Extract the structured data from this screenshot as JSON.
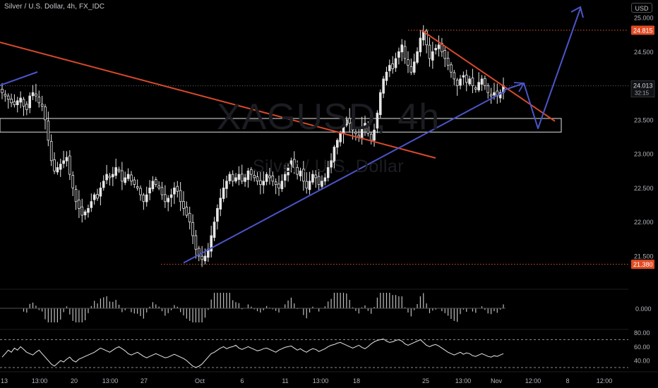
{
  "header": {
    "title": "Silver / U.S. Dollar, 4h, FX_IDC",
    "currency": "USD"
  },
  "watermark": {
    "symbol": "XAGUSD, 4h",
    "description": "Silver / U.S. Dollar"
  },
  "colors": {
    "background": "#000000",
    "candle": "#e6e6e6",
    "red_line": "#d84a2c",
    "blue_line": "#4b55c9",
    "price_badge_bg": "#e04b24",
    "axis_text": "#b2b5be",
    "box_border": "#cfcfcf",
    "dotted_level": "#e55a2a"
  },
  "chart_data": [
    {
      "type": "candlestick",
      "title": "",
      "symbol": "XAGUSD",
      "interval": "4h",
      "x_tick_labels": [
        "13",
        "13:00",
        "20",
        "13:00",
        "27",
        "Oct",
        "6",
        "11",
        "13:00",
        "18",
        "25",
        "13:00",
        "Nov",
        "12:00",
        "8",
        "12:00"
      ],
      "y_tick_labels": [
        "25.000",
        "24.500",
        "24.000",
        "23.500",
        "23.000",
        "22.500",
        "22.000",
        "21.500"
      ],
      "ylim": [
        21.3,
        25.2
      ],
      "current_price": "24.013",
      "countdown": "32:15",
      "price_levels": [
        {
          "value": 24.815,
          "label": "24.815",
          "style": "dotted"
        },
        {
          "value": 21.38,
          "label": "21.380",
          "style": "dotted"
        }
      ],
      "support_zone": [
        23.32,
        23.52
      ],
      "trendlines": [
        {
          "color": "red",
          "from": [
            "13",
            24.68
          ],
          "to": [
            "25",
            22.98
          ],
          "note": ""
        },
        {
          "color": "red",
          "from": [
            "25",
            24.81
          ],
          "to": [
            "Nov",
            23.48
          ]
        },
        {
          "color": "blue",
          "from": [
            "27",
            21.4
          ],
          "to": [
            "Nov",
            24.0
          ]
        },
        {
          "color": "blue",
          "from": [
            "13",
            24.0
          ],
          "to": [
            "13",
            24.2
          ]
        }
      ],
      "projection": {
        "color": "blue",
        "path_values": [
          23.85,
          24.03,
          23.37,
          25.12
        ]
      },
      "closes": [
        23.9,
        23.85,
        23.8,
        23.75,
        23.72,
        23.78,
        23.82,
        23.7,
        23.65,
        23.85,
        23.9,
        23.85,
        23.75,
        23.7,
        23.5,
        23.2,
        22.9,
        22.75,
        22.8,
        22.85,
        22.9,
        22.95,
        22.7,
        22.5,
        22.3,
        22.2,
        22.1,
        22.15,
        22.2,
        22.3,
        22.4,
        22.35,
        22.5,
        22.6,
        22.7,
        22.65,
        22.7,
        22.8,
        22.75,
        22.6,
        22.65,
        22.7,
        22.6,
        22.55,
        22.5,
        22.4,
        22.3,
        22.4,
        22.5,
        22.6,
        22.55,
        22.5,
        22.4,
        22.3,
        22.35,
        22.4,
        22.5,
        22.45,
        22.3,
        22.2,
        22.1,
        22.0,
        21.8,
        21.6,
        21.5,
        21.45,
        21.5,
        21.6,
        21.8,
        22.0,
        22.2,
        22.35,
        22.5,
        22.6,
        22.7,
        22.6,
        22.65,
        22.7,
        22.6,
        22.65,
        22.75,
        22.7,
        22.65,
        22.6,
        22.55,
        22.6,
        22.7,
        22.65,
        22.6,
        22.55,
        22.5,
        22.6,
        22.7,
        22.8,
        22.9,
        22.8,
        22.7,
        22.75,
        22.6,
        22.5,
        22.6,
        22.7,
        22.65,
        22.55,
        22.6,
        22.65,
        22.8,
        22.9,
        23.1,
        23.2,
        23.3,
        23.4,
        23.5,
        23.45,
        23.35,
        23.3,
        23.25,
        23.4,
        23.45,
        23.3,
        23.2,
        23.35,
        23.6,
        23.9,
        24.1,
        24.2,
        24.3,
        24.25,
        24.4,
        24.5,
        24.6,
        24.4,
        24.3,
        24.2,
        24.35,
        24.5,
        24.7,
        24.8,
        24.6,
        24.4,
        24.5,
        24.55,
        24.6,
        24.5,
        24.4,
        24.3,
        24.2,
        24.1,
        24.0,
        24.1,
        24.15,
        24.05,
        24.1,
        24.0,
        23.95,
        24.05,
        24.1,
        24.0,
        23.9,
        23.85,
        23.9,
        23.85,
        23.9,
        24.0
      ],
      "macd": {
        "zero_label": "0.000"
      },
      "rsi": {
        "y_tick_labels": [
          "80.00",
          "60.00",
          "40.00"
        ],
        "ylim": [
          20,
          90
        ],
        "bands": [
          70,
          30
        ],
        "values": [
          45,
          50,
          55,
          52,
          58,
          55,
          60,
          56,
          52,
          50,
          48,
          52,
          55,
          50,
          45,
          40,
          35,
          32,
          36,
          40,
          38,
          42,
          45,
          40,
          38,
          42,
          44,
          46,
          48,
          50,
          52,
          55,
          58,
          56,
          54,
          52,
          55,
          58,
          60,
          57,
          54,
          50,
          48,
          50,
          52,
          49,
          46,
          44,
          46,
          48,
          50,
          48,
          46,
          44,
          45,
          47,
          49,
          47,
          45,
          43,
          40,
          36,
          32,
          30,
          32,
          35,
          40,
          45,
          50,
          52,
          55,
          58,
          60,
          57,
          59,
          60,
          62,
          58,
          56,
          58,
          60,
          58,
          56,
          54,
          55,
          57,
          58,
          56,
          54,
          52,
          55,
          57,
          59,
          60,
          61,
          58,
          55,
          57,
          54,
          52,
          55,
          57,
          56,
          53,
          55,
          57,
          60,
          62,
          63,
          65,
          66,
          64,
          62,
          60,
          58,
          60,
          62,
          59,
          57,
          60,
          64,
          67,
          69,
          70,
          71,
          68,
          66,
          67,
          69,
          70,
          68,
          64,
          62,
          64,
          66,
          68,
          70,
          66,
          62,
          60,
          62,
          63,
          61,
          58,
          55,
          52,
          50,
          48,
          50,
          52,
          49,
          51,
          50,
          47,
          46,
          48,
          50,
          48,
          46,
          45,
          47,
          46,
          48,
          50
        ]
      }
    }
  ]
}
